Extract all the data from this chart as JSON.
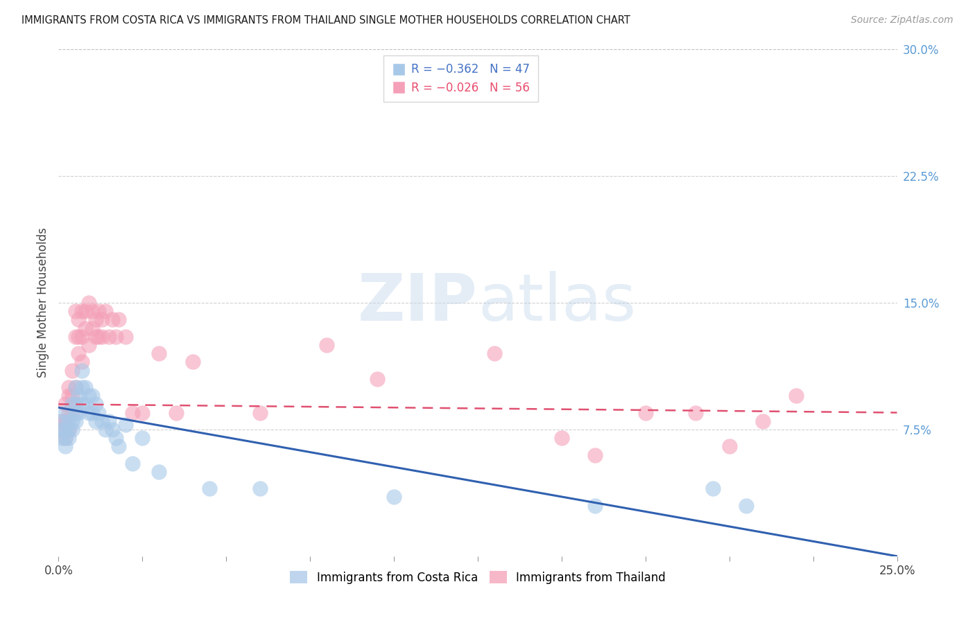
{
  "title": "IMMIGRANTS FROM COSTA RICA VS IMMIGRANTS FROM THAILAND SINGLE MOTHER HOUSEHOLDS CORRELATION CHART",
  "source": "Source: ZipAtlas.com",
  "ylabel": "Single Mother Households",
  "right_yticklabels": [
    "",
    "7.5%",
    "15.0%",
    "22.5%",
    "30.0%"
  ],
  "xlim": [
    0.0,
    0.25
  ],
  "ylim": [
    0.0,
    0.3
  ],
  "watermark_zip": "ZIP",
  "watermark_atlas": "atlas",
  "costa_rica_color": "#a8c8e8",
  "thailand_color": "#f4a0b8",
  "trend_costa_rica_color": "#3060b0",
  "trend_thailand_color": "#e05070",
  "costa_rica_x": [
    0.001,
    0.001,
    0.001,
    0.002,
    0.002,
    0.002,
    0.002,
    0.003,
    0.003,
    0.003,
    0.004,
    0.004,
    0.004,
    0.005,
    0.005,
    0.005,
    0.005,
    0.006,
    0.006,
    0.007,
    0.007,
    0.007,
    0.008,
    0.008,
    0.009,
    0.009,
    0.01,
    0.01,
    0.011,
    0.011,
    0.012,
    0.013,
    0.014,
    0.015,
    0.016,
    0.017,
    0.018,
    0.02,
    0.022,
    0.025,
    0.03,
    0.045,
    0.06,
    0.1,
    0.16,
    0.195,
    0.205
  ],
  "costa_rica_y": [
    0.07,
    0.075,
    0.08,
    0.065,
    0.07,
    0.075,
    0.085,
    0.07,
    0.075,
    0.08,
    0.075,
    0.08,
    0.09,
    0.08,
    0.085,
    0.09,
    0.1,
    0.085,
    0.095,
    0.09,
    0.1,
    0.11,
    0.09,
    0.1,
    0.085,
    0.095,
    0.085,
    0.095,
    0.08,
    0.09,
    0.085,
    0.08,
    0.075,
    0.08,
    0.075,
    0.07,
    0.065,
    0.078,
    0.055,
    0.07,
    0.05,
    0.04,
    0.04,
    0.035,
    0.03,
    0.04,
    0.03
  ],
  "thailand_x": [
    0.001,
    0.001,
    0.002,
    0.002,
    0.002,
    0.003,
    0.003,
    0.003,
    0.003,
    0.004,
    0.004,
    0.004,
    0.005,
    0.005,
    0.005,
    0.005,
    0.006,
    0.006,
    0.006,
    0.007,
    0.007,
    0.007,
    0.008,
    0.008,
    0.009,
    0.009,
    0.01,
    0.01,
    0.011,
    0.011,
    0.012,
    0.012,
    0.013,
    0.013,
    0.014,
    0.015,
    0.016,
    0.017,
    0.018,
    0.02,
    0.022,
    0.025,
    0.03,
    0.035,
    0.04,
    0.06,
    0.08,
    0.095,
    0.13,
    0.15,
    0.16,
    0.175,
    0.19,
    0.2,
    0.21,
    0.22
  ],
  "thailand_y": [
    0.075,
    0.08,
    0.07,
    0.08,
    0.09,
    0.075,
    0.085,
    0.095,
    0.1,
    0.085,
    0.095,
    0.11,
    0.09,
    0.1,
    0.13,
    0.145,
    0.13,
    0.14,
    0.12,
    0.13,
    0.145,
    0.115,
    0.135,
    0.145,
    0.15,
    0.125,
    0.135,
    0.145,
    0.14,
    0.13,
    0.145,
    0.13,
    0.14,
    0.13,
    0.145,
    0.13,
    0.14,
    0.13,
    0.14,
    0.13,
    0.085,
    0.085,
    0.12,
    0.085,
    0.115,
    0.085,
    0.125,
    0.105,
    0.12,
    0.07,
    0.06,
    0.085,
    0.085,
    0.065,
    0.08,
    0.095
  ],
  "cr_trend_x0": 0.0,
  "cr_trend_x1": 0.25,
  "cr_trend_y0": 0.088,
  "cr_trend_y1": 0.0,
  "th_trend_x0": 0.0,
  "th_trend_x1": 0.25,
  "th_trend_y0": 0.09,
  "th_trend_y1": 0.085,
  "legend1_label": "R = −0.362   N = 47",
  "legend2_label": "R = −0.026   N = 56",
  "legend_cr": "Immigrants from Costa Rica",
  "legend_th": "Immigrants from Thailand"
}
